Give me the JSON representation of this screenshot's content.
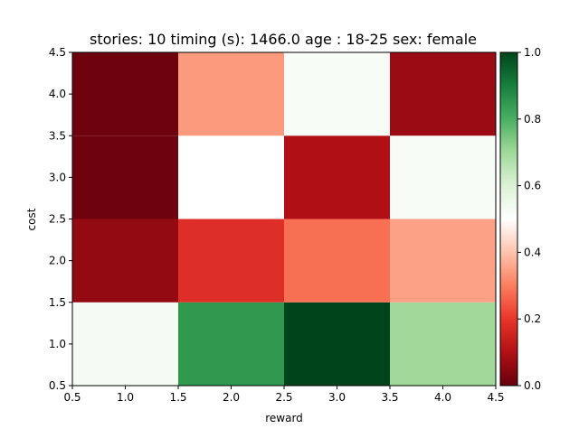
{
  "chart_data": {
    "type": "heatmap",
    "title": "stories: 10 timing (s): 1466.0 age : 18-25 sex: female",
    "xlabel": "reward",
    "ylabel": "cost",
    "xlim": [
      0.5,
      4.5
    ],
    "ylim": [
      0.5,
      4.5
    ],
    "x_ticks": [
      "0.5",
      "1.0",
      "1.5",
      "2.0",
      "2.5",
      "3.0",
      "3.5",
      "4.0",
      "4.5"
    ],
    "y_ticks": [
      "0.5",
      "1.0",
      "1.5",
      "2.0",
      "2.5",
      "3.0",
      "3.5",
      "4.0",
      "4.5"
    ],
    "x": [
      1,
      2,
      3,
      4
    ],
    "y": [
      1,
      2,
      3,
      4
    ],
    "values": [
      [
        0.53,
        0.85,
        1.0,
        0.7
      ],
      [
        0.06,
        0.18,
        0.28,
        0.35
      ],
      [
        0.01,
        0.5,
        0.1,
        0.52
      ],
      [
        0.01,
        0.34,
        0.52,
        0.07
      ]
    ],
    "colormap": "RdYlGn-like (red → white → green)",
    "colormap_stops": [
      {
        "v": 0.0,
        "color": "#67000d"
      },
      {
        "v": 0.1,
        "color": "#b01015"
      },
      {
        "v": 0.2,
        "color": "#e8362b"
      },
      {
        "v": 0.3,
        "color": "#fc7e5e"
      },
      {
        "v": 0.4,
        "color": "#fdc4ae"
      },
      {
        "v": 0.5,
        "color": "#ffffff"
      },
      {
        "v": 0.6,
        "color": "#dcf2d6"
      },
      {
        "v": 0.7,
        "color": "#a1d99b"
      },
      {
        "v": 0.8,
        "color": "#4aaf62"
      },
      {
        "v": 0.9,
        "color": "#17803c"
      },
      {
        "v": 1.0,
        "color": "#00441b"
      }
    ],
    "colorbar": {
      "range": [
        0.0,
        1.0
      ],
      "ticks": [
        "0.0",
        "0.2",
        "0.4",
        "0.6",
        "0.8",
        "1.0"
      ]
    }
  }
}
